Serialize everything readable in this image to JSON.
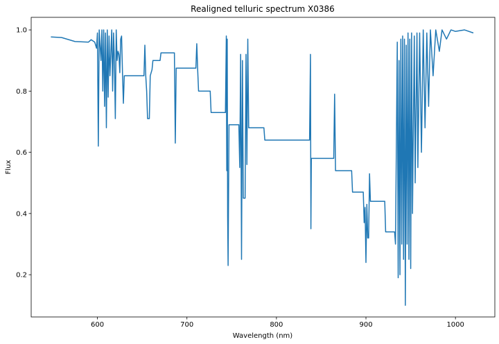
{
  "chart_data": {
    "type": "line",
    "title": "Realigned telluric spectrum X0386",
    "xlabel": "Wavelength (nm)",
    "ylabel": "Flux",
    "color": "#1f77b4",
    "xlim": [
      526,
      1044
    ],
    "ylim": [
      0.062,
      1.041
    ],
    "xticks": [
      600,
      700,
      800,
      900,
      1000
    ],
    "yticks": [
      0.2,
      0.4,
      0.6,
      0.8,
      {
        "value": 1,
        "label": "1.0"
      }
    ],
    "x": [
      548,
      560,
      575,
      590,
      593,
      597,
      599,
      600,
      601,
      602,
      604,
      605,
      606,
      607,
      608,
      609,
      610,
      611,
      612,
      613,
      614,
      616,
      617,
      618,
      619,
      620,
      621,
      622,
      623,
      624,
      625,
      626,
      627,
      628,
      629,
      630,
      652,
      653,
      654,
      655,
      656,
      658,
      659,
      661,
      662,
      670,
      671,
      686,
      687,
      688,
      710,
      711,
      712,
      713,
      726,
      727,
      743,
      744,
      744.5,
      745,
      745.5,
      746,
      747,
      758,
      759,
      760,
      761,
      762,
      763,
      765,
      766,
      767,
      768,
      769,
      786,
      787,
      837,
      838,
      838.5,
      839,
      864,
      865,
      866,
      884,
      885,
      897,
      898,
      899,
      900,
      901,
      902,
      903,
      904,
      905,
      921,
      922,
      932,
      933,
      935,
      936,
      937,
      938,
      939,
      940,
      941,
      942,
      943,
      944,
      945,
      946,
      947,
      948,
      949,
      950,
      951,
      952,
      954,
      955,
      957,
      958,
      960,
      962,
      964,
      966,
      968,
      970,
      972,
      975,
      978,
      982,
      985,
      990,
      995,
      1000,
      1010,
      1020
    ],
    "values": [
      0.977,
      0.975,
      0.962,
      0.96,
      0.968,
      0.96,
      0.94,
      0.99,
      0.62,
      1.0,
      0.9,
      1.0,
      0.8,
      1.0,
      0.75,
      0.99,
      0.68,
      1.0,
      0.78,
      0.98,
      0.85,
      1.0,
      0.8,
      0.99,
      0.9,
      0.71,
      1.0,
      0.9,
      0.93,
      0.92,
      0.86,
      0.97,
      0.98,
      0.86,
      0.76,
      0.85,
      0.85,
      0.95,
      0.85,
      0.8,
      0.71,
      0.71,
      0.85,
      0.87,
      0.9,
      0.9,
      0.925,
      0.925,
      0.63,
      0.875,
      0.875,
      0.955,
      0.87,
      0.8,
      0.8,
      0.73,
      0.73,
      0.98,
      0.54,
      0.97,
      0.39,
      0.23,
      0.69,
      0.69,
      0.55,
      0.92,
      0.25,
      0.9,
      0.45,
      0.45,
      0.92,
      0.56,
      0.97,
      0.68,
      0.68,
      0.64,
      0.64,
      0.92,
      0.35,
      0.58,
      0.58,
      0.79,
      0.54,
      0.54,
      0.47,
      0.47,
      0.37,
      0.42,
      0.24,
      0.43,
      0.32,
      0.32,
      0.53,
      0.44,
      0.44,
      0.34,
      0.34,
      0.3,
      0.96,
      0.19,
      0.9,
      0.2,
      0.97,
      0.3,
      0.98,
      0.25,
      0.97,
      0.1,
      0.95,
      0.3,
      0.99,
      0.25,
      0.97,
      0.22,
      0.99,
      0.4,
      0.98,
      0.5,
      0.99,
      0.55,
      0.99,
      0.6,
      1.0,
      0.68,
      0.99,
      0.75,
      1.0,
      0.85,
      1.0,
      0.93,
      1.0,
      0.97,
      1.0,
      0.995,
      1.0,
      0.99
    ]
  }
}
